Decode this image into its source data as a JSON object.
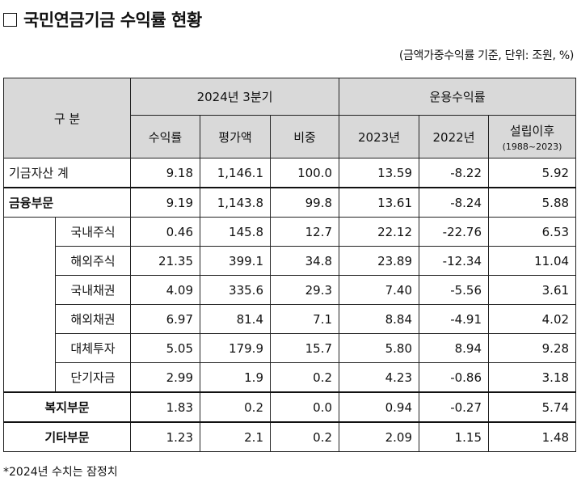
{
  "title": "국민연금기금 수익률 현황",
  "unit_note": "(금액가중수익률 기준, 단위: 조원, %)",
  "header": {
    "category": "구  분",
    "group_2024": "2024년 3분기",
    "group_return": "운용수익률",
    "cols": [
      "수익률",
      "평가액",
      "비중",
      "2023년",
      "2022년"
    ],
    "since_label": "설립이후",
    "since_range": "(1988~2023)"
  },
  "rows": [
    {
      "label": "기금자산 계",
      "values": [
        "9.18",
        "1,146.1",
        "100.0",
        "13.59",
        "-8.22",
        "5.92"
      ]
    },
    {
      "label": "금융부문",
      "values": [
        "9.19",
        "1,143.8",
        "99.8",
        "13.61",
        "-8.24",
        "5.88"
      ]
    },
    {
      "label": "국내주식",
      "values": [
        "0.46",
        "145.8",
        "12.7",
        "22.12",
        "-22.76",
        "6.53"
      ]
    },
    {
      "label": "해외주식",
      "values": [
        "21.35",
        "399.1",
        "34.8",
        "23.89",
        "-12.34",
        "11.04"
      ]
    },
    {
      "label": "국내채권",
      "values": [
        "4.09",
        "335.6",
        "29.3",
        "7.40",
        "-5.56",
        "3.61"
      ]
    },
    {
      "label": "해외채권",
      "values": [
        "6.97",
        "81.4",
        "7.1",
        "8.84",
        "-4.91",
        "4.02"
      ]
    },
    {
      "label": "대체투자",
      "values": [
        "5.05",
        "179.9",
        "15.7",
        "5.80",
        "8.94",
        "9.28"
      ]
    },
    {
      "label": "단기자금",
      "values": [
        "2.99",
        "1.9",
        "0.2",
        "4.23",
        "-0.86",
        "3.18"
      ]
    },
    {
      "label": "복지부문",
      "values": [
        "1.83",
        "0.2",
        "0.0",
        "0.94",
        "-0.27",
        "5.74"
      ]
    },
    {
      "label": "기타부문",
      "values": [
        "1.23",
        "2.1",
        "0.2",
        "2.09",
        "1.15",
        "1.48"
      ]
    }
  ],
  "footnote": "*2024년 수치는 잠정치"
}
